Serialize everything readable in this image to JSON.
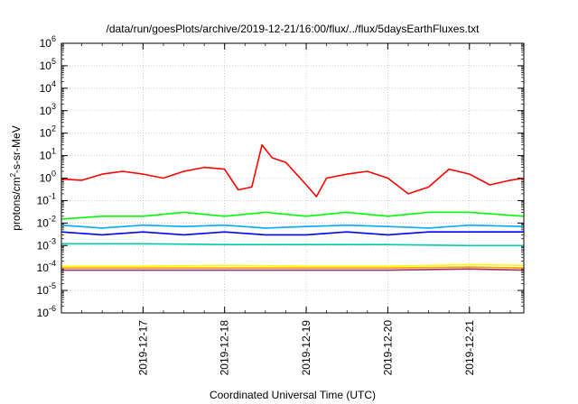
{
  "chart_data": {
    "type": "line",
    "title": "/data/run/goesPlots/archive/2019-12-21/16:00/flux/../flux/5daysEarthFluxes.txt",
    "xlabel": "Coordinated Universal Time (UTC)",
    "ylabel": {
      "prefix": "protons/cm",
      "sup": "2",
      "suffix": "-s-sr-MeV"
    },
    "yscale": "log",
    "ylim": [
      1e-06,
      1000000.0
    ],
    "xlim": [
      "2019-12-16 00:00",
      "2019-12-21 16:00"
    ],
    "grid": true,
    "x_ticks": [
      "2019-12-17",
      "2019-12-18",
      "2019-12-19",
      "2019-12-20",
      "2019-12-21"
    ],
    "y_ticks": [
      {
        "base": "10",
        "exp": "-6"
      },
      {
        "base": "10",
        "exp": "-5"
      },
      {
        "base": "10",
        "exp": "-4"
      },
      {
        "base": "10",
        "exp": "-3"
      },
      {
        "base": "10",
        "exp": "-2"
      },
      {
        "base": "10",
        "exp": "-1"
      },
      {
        "base": "10",
        "exp": "0"
      },
      {
        "base": "10",
        "exp": "1"
      },
      {
        "base": "10",
        "exp": "2"
      },
      {
        "base": "10",
        "exp": "3"
      },
      {
        "base": "10",
        "exp": "4"
      },
      {
        "base": "10",
        "exp": "5"
      },
      {
        "base": "10",
        "exp": "6"
      }
    ],
    "series": [
      {
        "color": "#ff0000",
        "points": [
          [
            "2019-12-16 00:00",
            0.9
          ],
          [
            "2019-12-16 06:00",
            0.8
          ],
          [
            "2019-12-16 12:00",
            1.5
          ],
          [
            "2019-12-16 18:00",
            2.0
          ],
          [
            "2019-12-17 00:00",
            1.5
          ],
          [
            "2019-12-17 06:00",
            1.0
          ],
          [
            "2019-12-17 12:00",
            2.0
          ],
          [
            "2019-12-17 18:00",
            3.0
          ],
          [
            "2019-12-18 00:00",
            2.5
          ],
          [
            "2019-12-18 04:00",
            0.3
          ],
          [
            "2019-12-18 08:00",
            0.4
          ],
          [
            "2019-12-18 11:00",
            30
          ],
          [
            "2019-12-18 14:00",
            8.0
          ],
          [
            "2019-12-18 18:00",
            5.0
          ],
          [
            "2019-12-19 00:00",
            0.5
          ],
          [
            "2019-12-19 03:00",
            0.15
          ],
          [
            "2019-12-19 06:00",
            1.0
          ],
          [
            "2019-12-19 12:00",
            1.5
          ],
          [
            "2019-12-19 18:00",
            2.0
          ],
          [
            "2019-12-20 00:00",
            1.0
          ],
          [
            "2019-12-20 06:00",
            0.2
          ],
          [
            "2019-12-20 12:00",
            0.4
          ],
          [
            "2019-12-20 18:00",
            2.5
          ],
          [
            "2019-12-21 00:00",
            1.5
          ],
          [
            "2019-12-21 06:00",
            0.5
          ],
          [
            "2019-12-21 12:00",
            0.8
          ],
          [
            "2019-12-21 16:00",
            1.0
          ]
        ]
      },
      {
        "color": "#00ff00",
        "points": [
          [
            "2019-12-16 00:00",
            0.015
          ],
          [
            "2019-12-16 12:00",
            0.02
          ],
          [
            "2019-12-17 00:00",
            0.02
          ],
          [
            "2019-12-17 12:00",
            0.03
          ],
          [
            "2019-12-18 00:00",
            0.02
          ],
          [
            "2019-12-18 12:00",
            0.03
          ],
          [
            "2019-12-19 00:00",
            0.02
          ],
          [
            "2019-12-19 12:00",
            0.03
          ],
          [
            "2019-12-20 00:00",
            0.02
          ],
          [
            "2019-12-20 12:00",
            0.03
          ],
          [
            "2019-12-21 00:00",
            0.03
          ],
          [
            "2019-12-21 16:00",
            0.02
          ]
        ]
      },
      {
        "color": "#00aaff",
        "points": [
          [
            "2019-12-16 00:00",
            0.008
          ],
          [
            "2019-12-16 12:00",
            0.006
          ],
          [
            "2019-12-17 00:00",
            0.008
          ],
          [
            "2019-12-17 12:00",
            0.007
          ],
          [
            "2019-12-18 00:00",
            0.008
          ],
          [
            "2019-12-18 12:00",
            0.006
          ],
          [
            "2019-12-19 00:00",
            0.007
          ],
          [
            "2019-12-19 12:00",
            0.008
          ],
          [
            "2019-12-20 00:00",
            0.007
          ],
          [
            "2019-12-20 12:00",
            0.006
          ],
          [
            "2019-12-21 00:00",
            0.008
          ],
          [
            "2019-12-21 16:00",
            0.007
          ]
        ]
      },
      {
        "color": "#0000ff",
        "points": [
          [
            "2019-12-16 00:00",
            0.004
          ],
          [
            "2019-12-16 12:00",
            0.003
          ],
          [
            "2019-12-17 00:00",
            0.004
          ],
          [
            "2019-12-17 12:00",
            0.003
          ],
          [
            "2019-12-18 00:00",
            0.004
          ],
          [
            "2019-12-18 12:00",
            0.003
          ],
          [
            "2019-12-19 00:00",
            0.003
          ],
          [
            "2019-12-19 12:00",
            0.004
          ],
          [
            "2019-12-20 00:00",
            0.003
          ],
          [
            "2019-12-20 12:00",
            0.004
          ],
          [
            "2019-12-21 00:00",
            0.004
          ],
          [
            "2019-12-21 16:00",
            0.004
          ]
        ]
      },
      {
        "color": "#00ccaa",
        "points": [
          [
            "2019-12-16 00:00",
            0.0012
          ],
          [
            "2019-12-17 00:00",
            0.0012
          ],
          [
            "2019-12-18 00:00",
            0.0011
          ],
          [
            "2019-12-19 00:00",
            0.0011
          ],
          [
            "2019-12-20 00:00",
            0.0011
          ],
          [
            "2019-12-21 00:00",
            0.001
          ],
          [
            "2019-12-21 16:00",
            0.001
          ]
        ]
      },
      {
        "color": "#ffff00",
        "points": [
          [
            "2019-12-16 00:00",
            0.00012
          ],
          [
            "2019-12-17 00:00",
            0.00012
          ],
          [
            "2019-12-18 00:00",
            0.00013
          ],
          [
            "2019-12-19 00:00",
            0.00012
          ],
          [
            "2019-12-20 00:00",
            0.00012
          ],
          [
            "2019-12-21 00:00",
            0.00014
          ],
          [
            "2019-12-21 16:00",
            0.00013
          ]
        ]
      },
      {
        "color": "#ff9900",
        "points": [
          [
            "2019-12-16 00:00",
            0.0001
          ],
          [
            "2019-12-17 00:00",
            0.0001
          ],
          [
            "2019-12-18 00:00",
            0.0001
          ],
          [
            "2019-12-19 00:00",
            0.0001
          ],
          [
            "2019-12-20 00:00",
            0.0001
          ],
          [
            "2019-12-21 00:00",
            0.00011
          ],
          [
            "2019-12-21 16:00",
            0.0001
          ]
        ]
      },
      {
        "color": "#993366",
        "points": [
          [
            "2019-12-16 00:00",
            8e-05
          ],
          [
            "2019-12-17 00:00",
            8e-05
          ],
          [
            "2019-12-18 00:00",
            8e-05
          ],
          [
            "2019-12-19 00:00",
            8e-05
          ],
          [
            "2019-12-20 00:00",
            8e-05
          ],
          [
            "2019-12-21 00:00",
            9e-05
          ],
          [
            "2019-12-21 16:00",
            8e-05
          ]
        ]
      }
    ]
  }
}
